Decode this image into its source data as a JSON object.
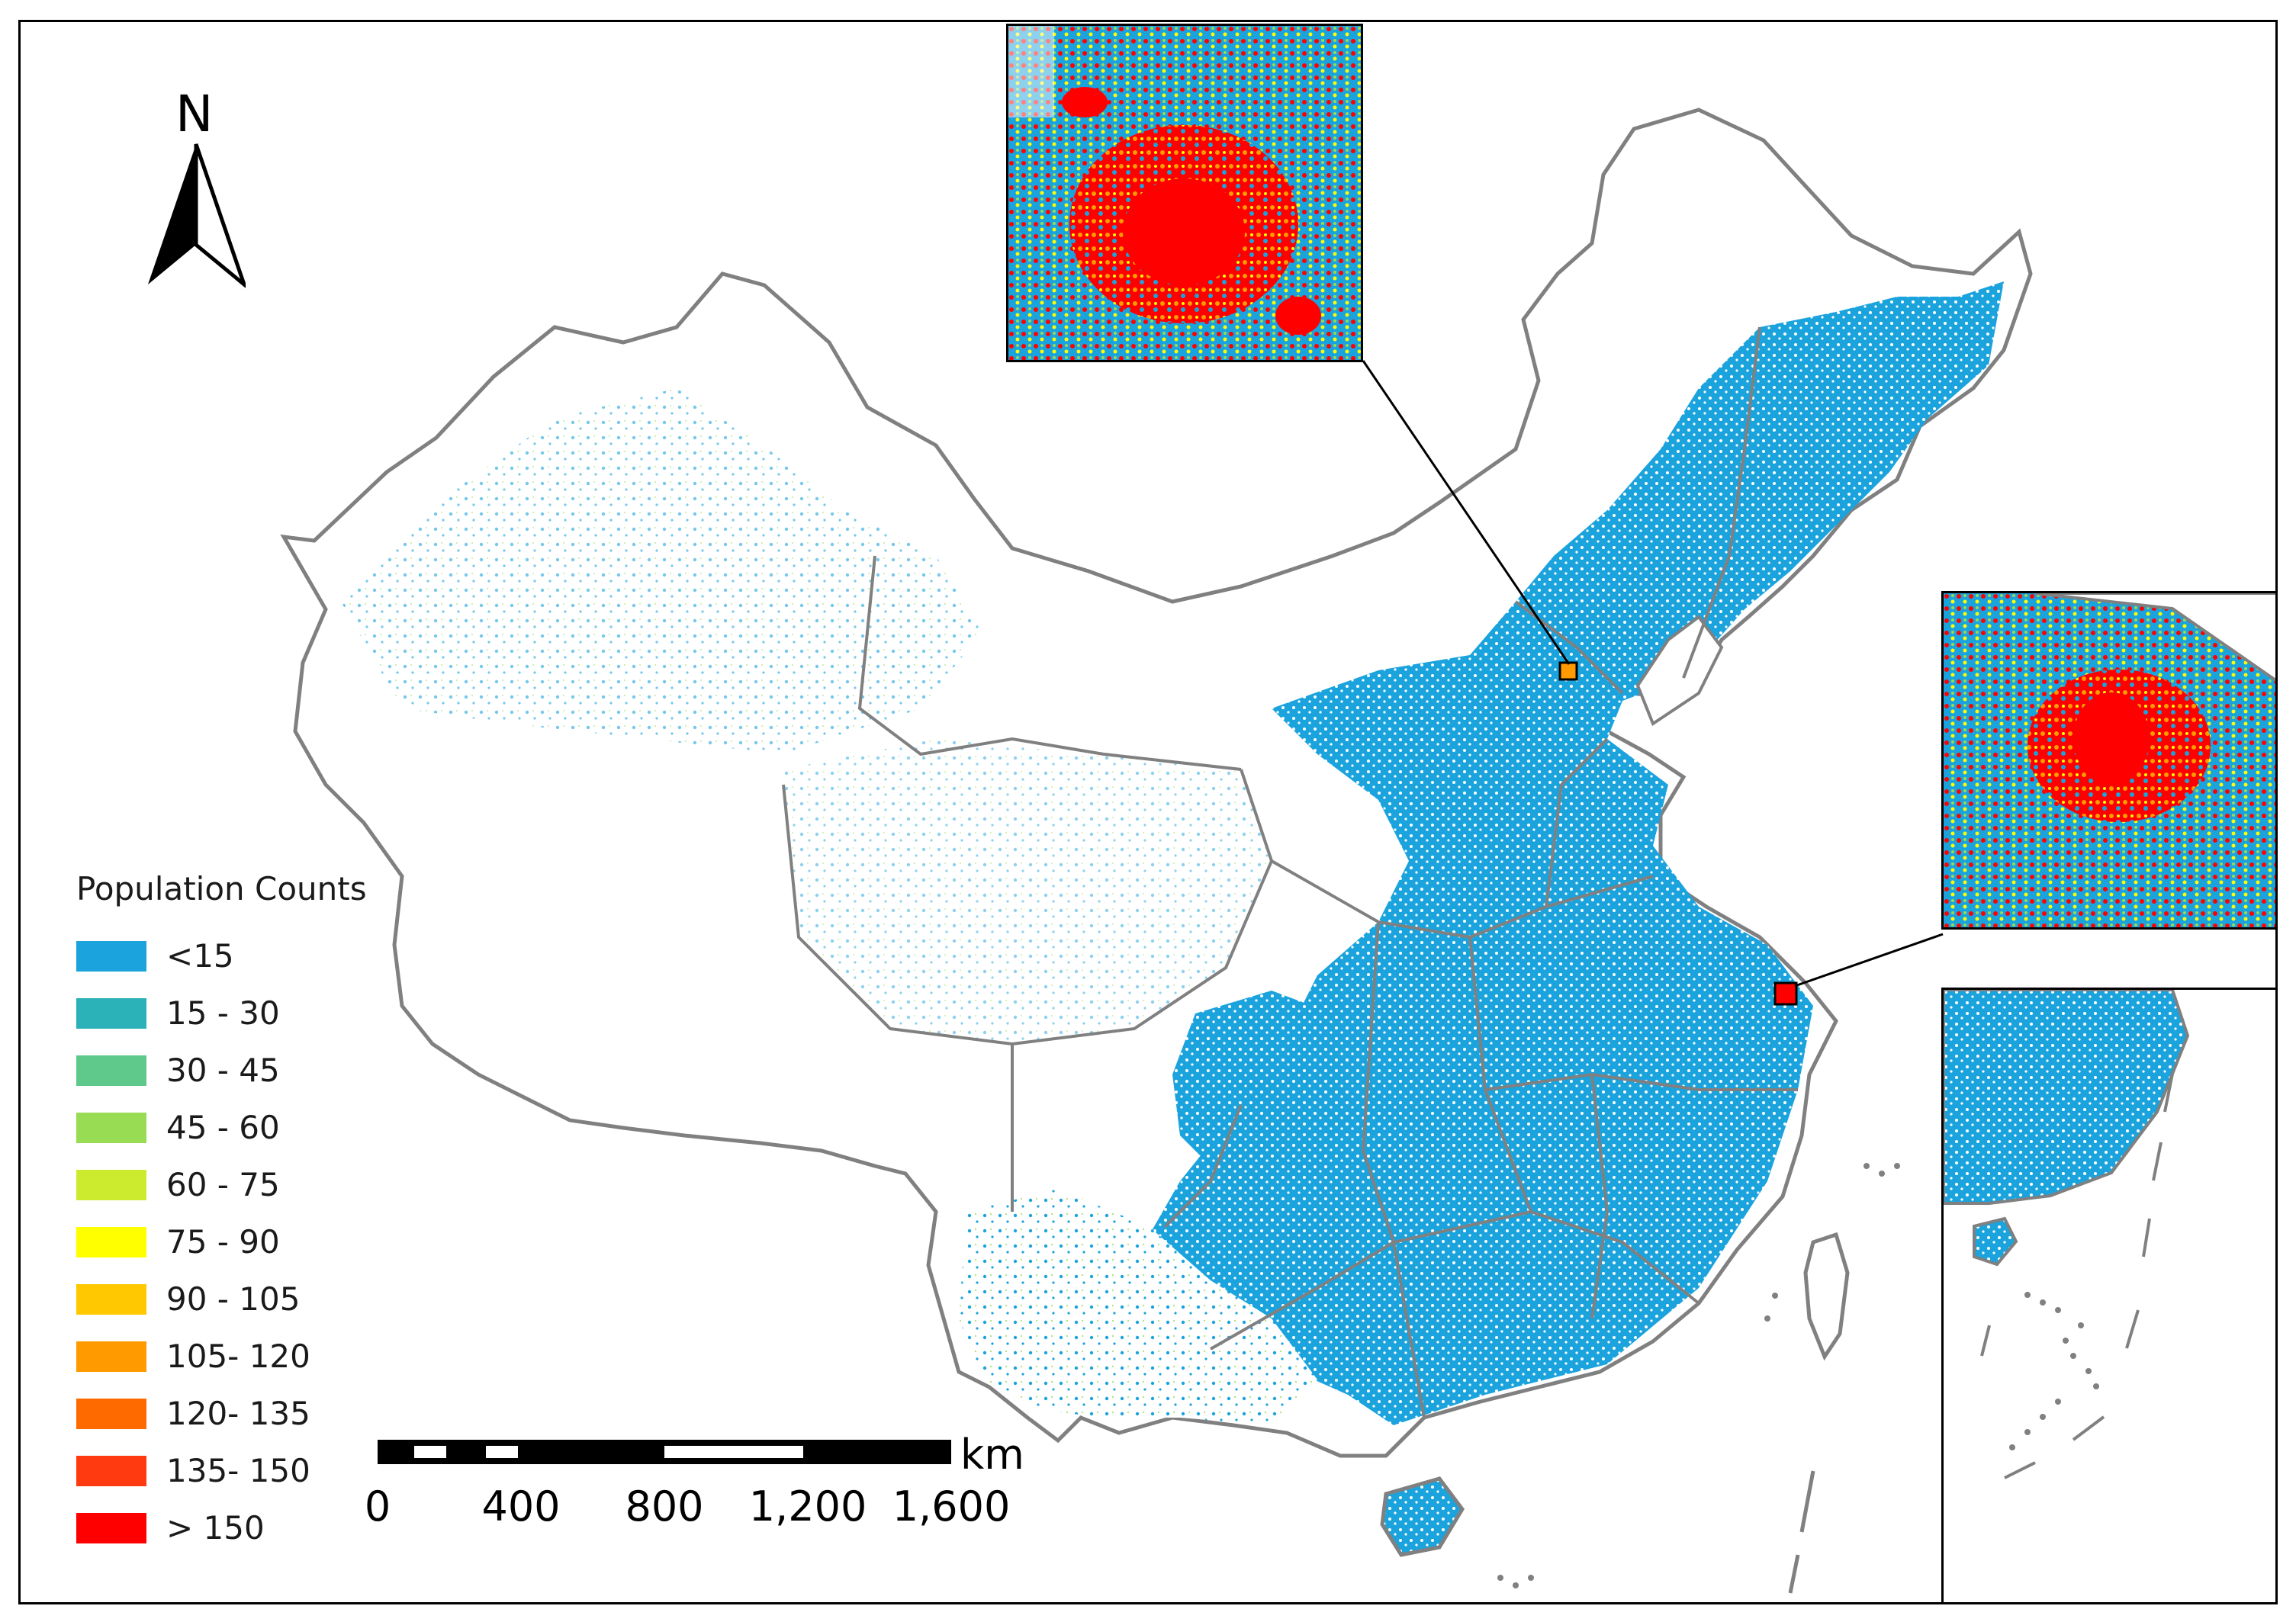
{
  "north_arrow": {
    "letter": "N",
    "icon": "north-arrow-icon"
  },
  "legend": {
    "title": "Population Counts",
    "items": [
      {
        "label": "<15",
        "color": "#1ba3dd"
      },
      {
        "label": "15 - 30",
        "color": "#2bb2b8"
      },
      {
        "label": "30 - 45",
        "color": "#5fc98b"
      },
      {
        "label": "45 - 60",
        "color": "#97dc52"
      },
      {
        "label": "60 - 75",
        "color": "#cdeb2e"
      },
      {
        "label": "75 - 90",
        "color": "#ffff00"
      },
      {
        "label": "90 - 105",
        "color": "#ffc800"
      },
      {
        "label": "105- 120",
        "color": "#ff9a00"
      },
      {
        "label": "120- 135",
        "color": "#ff6a00"
      },
      {
        "label": "135- 150",
        "color": "#ff3a10"
      },
      {
        "label": "> 150",
        "color": "#ff0000"
      }
    ]
  },
  "scale_bar": {
    "units": "km",
    "labels": [
      "0",
      "400",
      "800",
      "1,200",
      "1,600"
    ]
  },
  "colors": {
    "boundary": "#808080",
    "frame": "#000000",
    "background": "#ffffff"
  },
  "insets": [
    {
      "name": "city-inset-north",
      "icon": "zoom-inset"
    },
    {
      "name": "city-inset-east",
      "icon": "zoom-inset"
    },
    {
      "name": "south-china-sea-inset",
      "icon": "island-inset"
    }
  ]
}
